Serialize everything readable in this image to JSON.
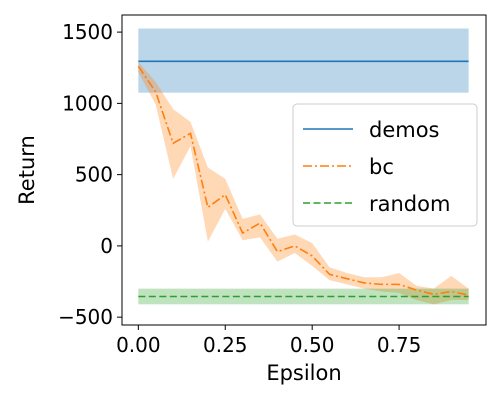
{
  "chart_data": {
    "type": "line",
    "xlabel": "Epsilon",
    "ylabel": "Return",
    "xlim": [
      -0.047,
      1.0
    ],
    "ylim": [
      -555,
      1620
    ],
    "x_ticks": [
      0.0,
      0.25,
      0.5,
      0.75
    ],
    "x_tick_labels": [
      "0.00",
      "0.25",
      "0.50",
      "0.75"
    ],
    "y_ticks": [
      -500,
      0,
      500,
      1000,
      1500
    ],
    "y_tick_labels": [
      "−500",
      "0",
      "500",
      "1000",
      "1500"
    ],
    "grid": false,
    "legend_position": "center-right",
    "series": [
      {
        "name": "demos",
        "style": "solid",
        "color": "#1f77b4",
        "band_color": "#1f77b4",
        "kind": "hline",
        "x_range": [
          0.0,
          0.95
        ],
        "value": 1295,
        "band": [
          1075,
          1525
        ]
      },
      {
        "name": "bc",
        "style": "dashdot",
        "color": "#ff7f0e",
        "band_color": "#ff7f0e",
        "kind": "line",
        "x": [
          0.0,
          0.05,
          0.1,
          0.15,
          0.2,
          0.25,
          0.3,
          0.35,
          0.4,
          0.45,
          0.5,
          0.55,
          0.6,
          0.65,
          0.7,
          0.75,
          0.8,
          0.85,
          0.9,
          0.95
        ],
        "y": [
          1260,
          1080,
          720,
          790,
          270,
          360,
          90,
          160,
          -40,
          0,
          -70,
          -200,
          -230,
          -260,
          -270,
          -270,
          -310,
          -340,
          -320,
          -345
        ],
        "lower": [
          1220,
          990,
          470,
          700,
          30,
          260,
          40,
          60,
          -110,
          -50,
          -140,
          -240,
          -270,
          -300,
          -320,
          -330,
          -380,
          -410,
          -380,
          -380
        ],
        "upper": [
          1290,
          1150,
          960,
          870,
          550,
          470,
          190,
          220,
          50,
          80,
          20,
          -150,
          -190,
          -220,
          -220,
          -190,
          -280,
          -300,
          -210,
          -300
        ]
      },
      {
        "name": "random",
        "style": "dashed",
        "color": "#2ca02c",
        "band_color": "#2ca02c",
        "kind": "hline",
        "x_range": [
          0.0,
          0.95
        ],
        "value": -355,
        "band": [
          -410,
          -300
        ]
      }
    ]
  }
}
